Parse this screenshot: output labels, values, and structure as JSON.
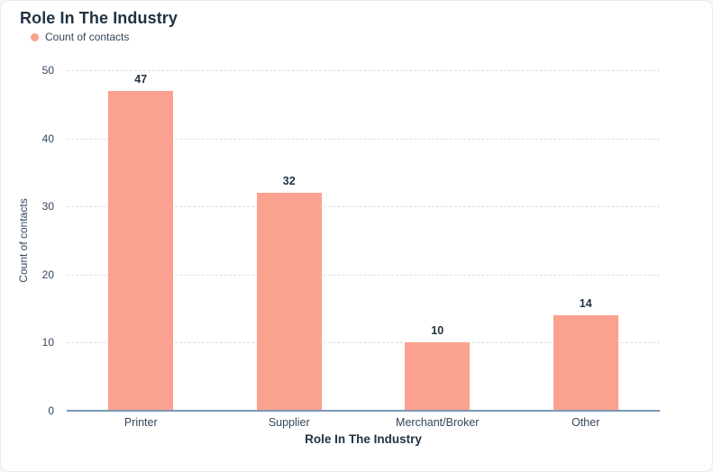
{
  "colors": {
    "bar": "#faa28f",
    "title_text": "#213343",
    "tick_text": "#33475b",
    "gridline": "#d9e0e8",
    "axis_line": "#7c98b6",
    "card_background": "#ffffff"
  },
  "legend": [
    {
      "label": "Count of contacts",
      "color": "#faa28f"
    }
  ],
  "chart_data": {
    "type": "bar",
    "title": "Role In The Industry",
    "series_name": "Count of contacts",
    "categories": [
      "Printer",
      "Supplier",
      "Merchant/Broker",
      "Other"
    ],
    "values": [
      47,
      32,
      10,
      14
    ],
    "xlabel": "Role In The Industry",
    "ylabel": "Count of contacts",
    "ylim": [
      0,
      50
    ],
    "ytick_interval": 10,
    "yticks": [
      0,
      10,
      20,
      30,
      40,
      50
    ],
    "grid": "horizontal-dashed",
    "legend_position": "top-left",
    "bar_color": "#faa28f",
    "data_labels_visible": true
  }
}
